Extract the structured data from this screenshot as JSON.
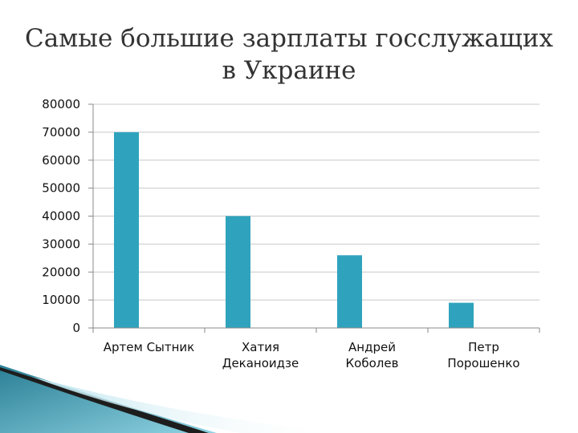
{
  "chart_data": {
    "type": "bar",
    "title_lines": [
      "Самые большие зарплаты госслужащих",
      "в Украине"
    ],
    "categories": [
      [
        "Артем Сытник"
      ],
      [
        "Хатия",
        "Деканоидзе"
      ],
      [
        "Андрей",
        "Коболев"
      ],
      [
        "Петр",
        "Порошенко"
      ]
    ],
    "values": [
      70000,
      40000,
      26000,
      9000
    ],
    "ylim": [
      0,
      80000
    ],
    "yticks": [
      "0",
      "10000",
      "20000",
      "30000",
      "40000",
      "50000",
      "60000",
      "70000",
      "80000"
    ],
    "grid": true,
    "legend": "none",
    "bar_color": "#2fa3bd"
  }
}
